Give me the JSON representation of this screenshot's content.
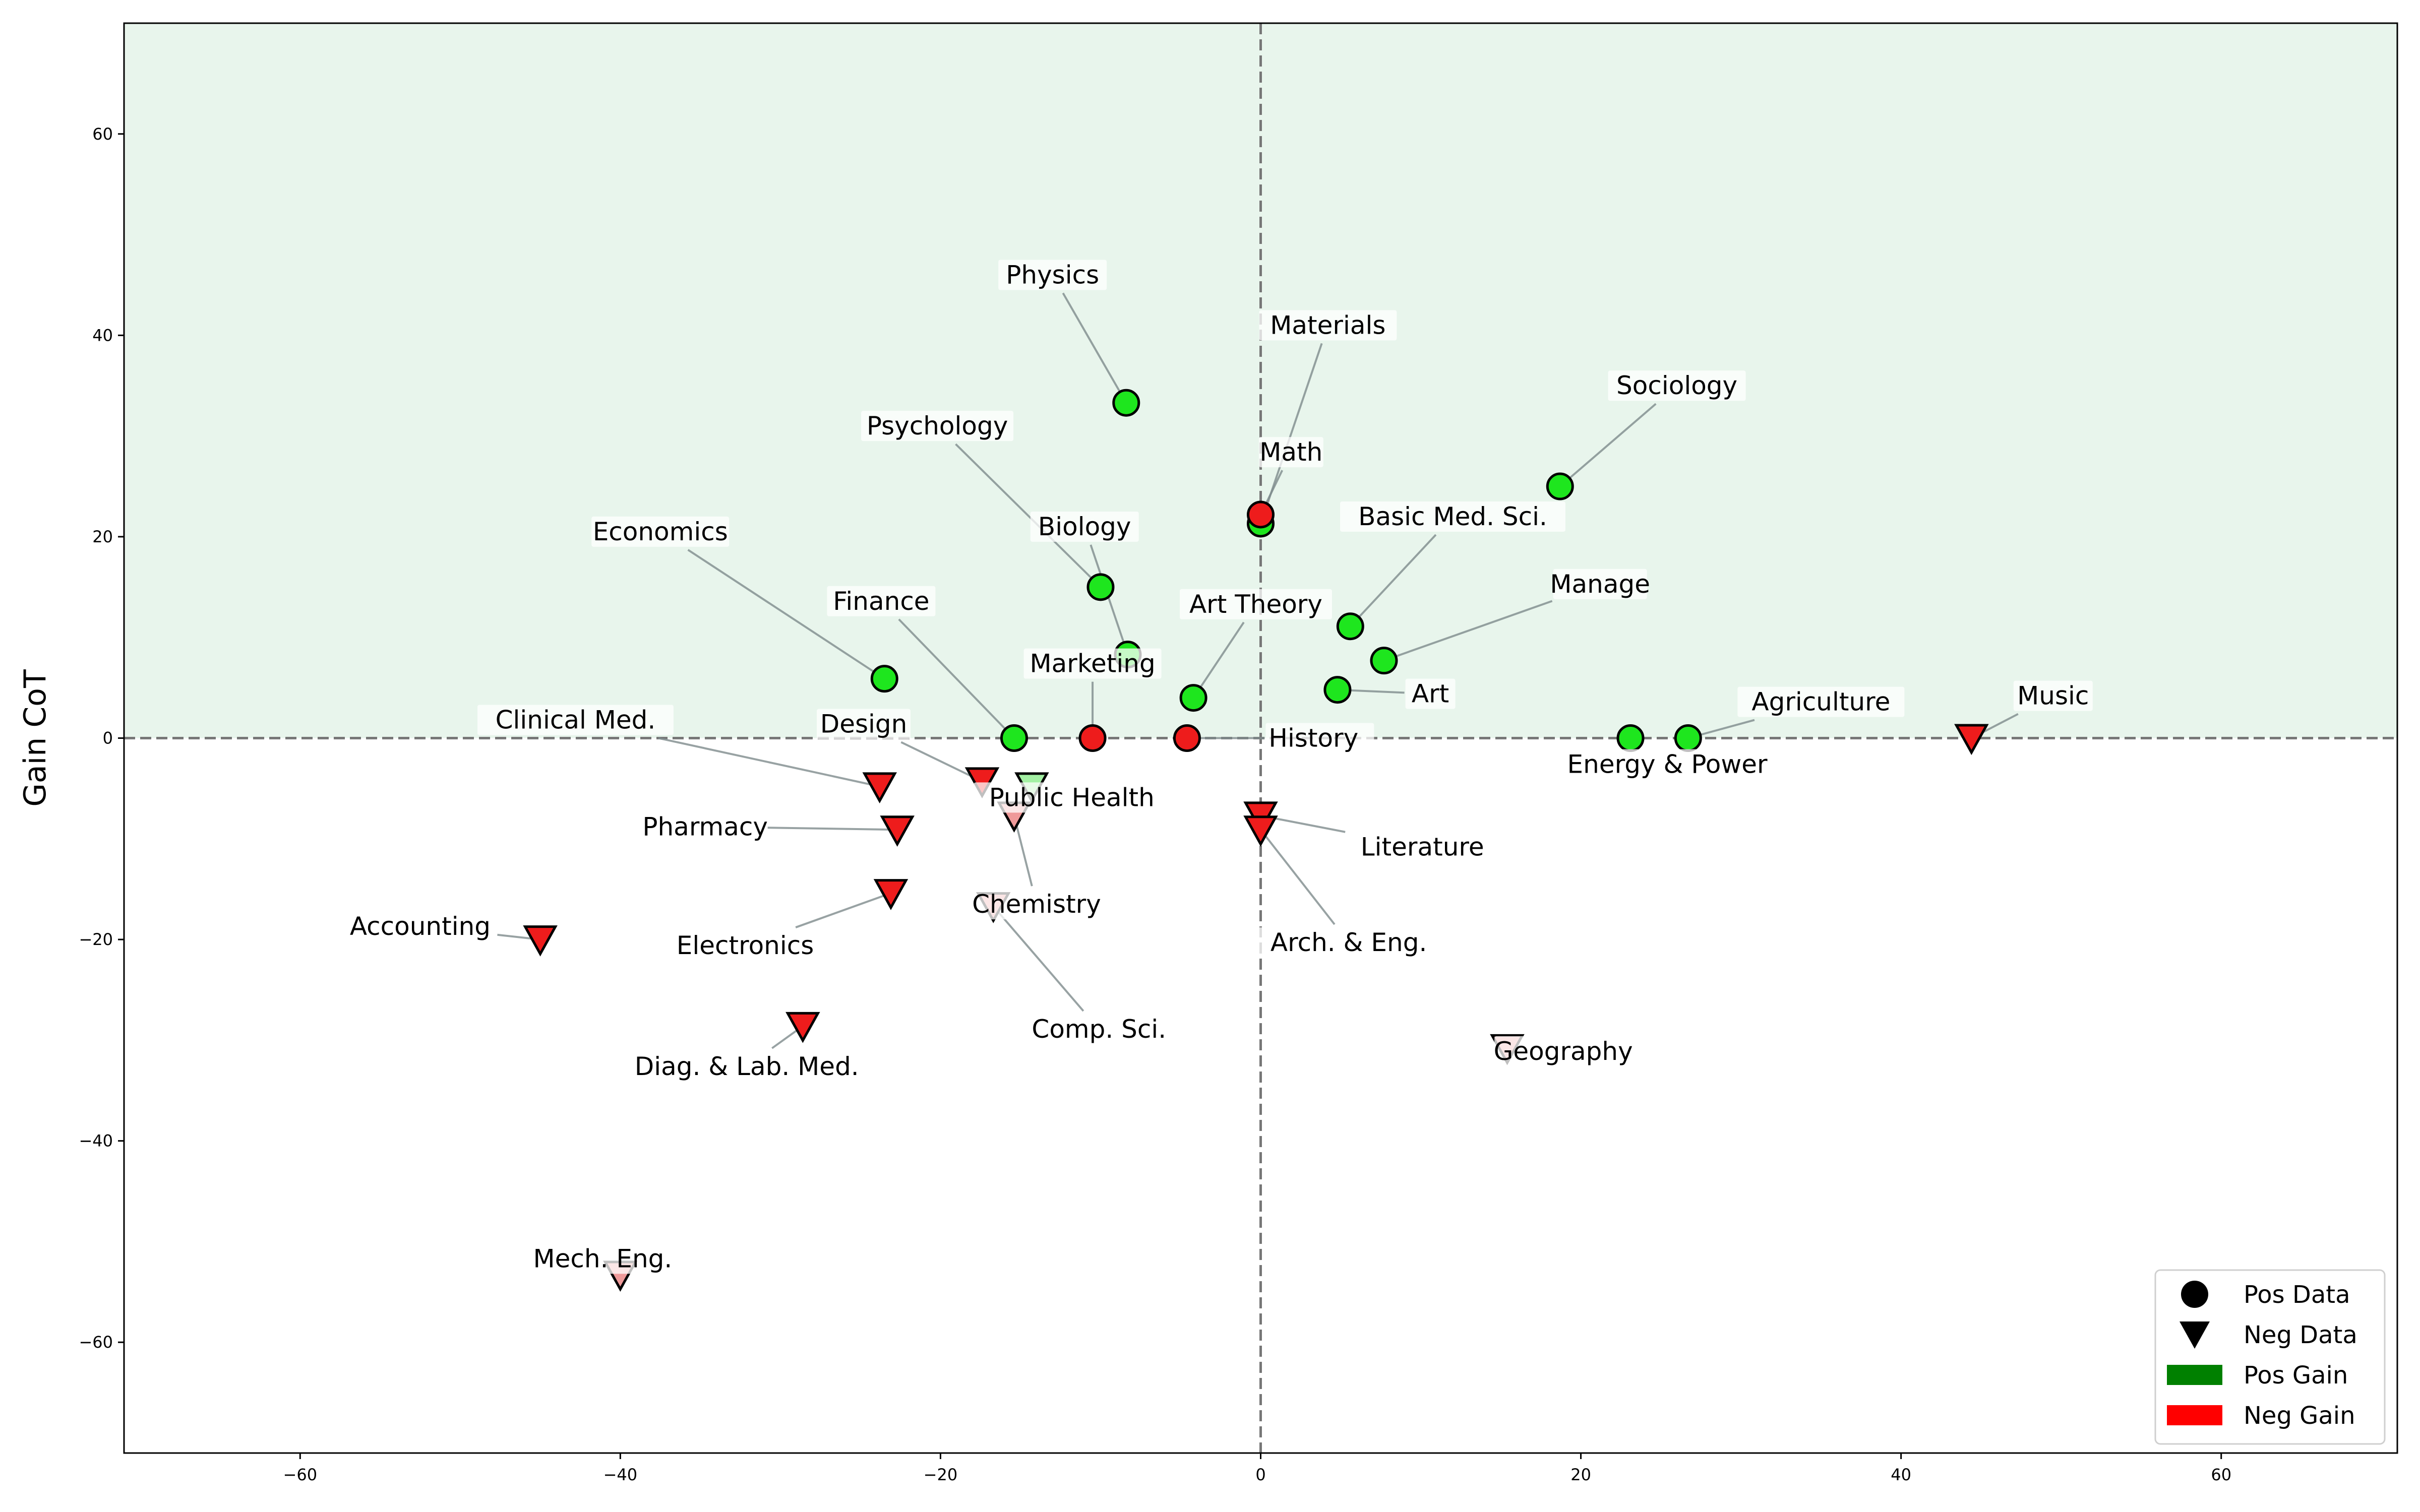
{
  "chart_data": {
    "type": "scatter",
    "title": "",
    "xlabel": "",
    "ylabel": "Gain CoT",
    "xlim": [
      -71,
      71
    ],
    "ylim": [
      -71,
      71
    ],
    "xticks": [
      -60,
      -40,
      -20,
      0,
      20,
      40,
      60
    ],
    "yticks": [
      -60,
      -40,
      -20,
      0,
      20,
      40,
      60
    ],
    "tick_labels": {
      "x": [
        "−60",
        "−40",
        "−20",
        "0",
        "20",
        "40",
        "60"
      ],
      "y": [
        "−60",
        "−40",
        "−20",
        "0",
        "20",
        "40",
        "60"
      ]
    },
    "positive_region_color": "#e8f5ec",
    "reference_lines": {
      "x": 0,
      "y": 0
    },
    "colors": {
      "pos": "#1ee61e",
      "neg": "#ee1c1c",
      "pos_faded": "#a3f0a3",
      "neg_faded": "#ef9a9a",
      "leader": "#7f8c8d",
      "legend_pos_patch": "#008000",
      "legend_neg_patch": "#ff0000"
    },
    "legend": {
      "position": "lower-right",
      "entries": [
        {
          "label": "Pos Data",
          "marker": "circle"
        },
        {
          "label": "Neg Data",
          "marker": "triangle-down"
        },
        {
          "label": "Pos Gain",
          "marker": "patch-green"
        },
        {
          "label": "Neg Gain",
          "marker": "patch-red"
        }
      ]
    },
    "points": [
      {
        "label": "Physics",
        "x": -8.4,
        "y": 33.3,
        "marker": "circle",
        "color": "pos",
        "lx": -13,
        "ly": 46
      },
      {
        "label": "Materials",
        "x": 0,
        "y": 21.3,
        "marker": "circle",
        "color": "pos",
        "lx": 4.2,
        "ly": 41
      },
      {
        "label": "Math",
        "x": 0,
        "y": 22.2,
        "marker": "circle",
        "color": "neg",
        "lx": 1.9,
        "ly": 28.4
      },
      {
        "label": "Sociology",
        "x": 18.7,
        "y": 25.0,
        "marker": "circle",
        "color": "pos",
        "lx": 26,
        "ly": 35
      },
      {
        "label": "Psychology",
        "x": -10.0,
        "y": 15.0,
        "marker": "circle",
        "color": "pos",
        "lx": -20.2,
        "ly": 31
      },
      {
        "label": "Biology",
        "x": -8.3,
        "y": 8.3,
        "marker": "circle",
        "color": "pos",
        "lx": -11,
        "ly": 21
      },
      {
        "label": "Basic Med. Sci.",
        "x": 5.6,
        "y": 11.1,
        "marker": "circle",
        "color": "pos",
        "lx": 12,
        "ly": 22
      },
      {
        "label": "Economics",
        "x": -23.5,
        "y": 5.9,
        "marker": "circle",
        "color": "pos",
        "lx": -37.5,
        "ly": 20.5
      },
      {
        "label": "Manage",
        "x": 7.7,
        "y": 7.7,
        "marker": "circle",
        "color": "pos",
        "lx": 21.2,
        "ly": 15.3
      },
      {
        "label": "Finance",
        "x": -15.4,
        "y": 0,
        "marker": "circle",
        "color": "pos",
        "lx": -23.7,
        "ly": 13.6
      },
      {
        "label": "Art Theory",
        "x": -4.2,
        "y": 4.0,
        "marker": "circle",
        "color": "pos",
        "lx": -0.3,
        "ly": 13.3
      },
      {
        "label": "Marketing",
        "x": -10.5,
        "y": 0,
        "marker": "circle",
        "color": "neg",
        "lx": -10.5,
        "ly": 7.4
      },
      {
        "label": "Art",
        "x": 4.8,
        "y": 4.8,
        "marker": "circle",
        "color": "pos",
        "lx": 10.6,
        "ly": 4.4
      },
      {
        "label": "History",
        "x": -4.6,
        "y": 0,
        "marker": "circle",
        "color": "neg",
        "lx": 0.5,
        "ly": 0,
        "anchor": "start"
      },
      {
        "label": "Agriculture",
        "x": 26.7,
        "y": 0,
        "marker": "circle",
        "color": "pos",
        "lx": 35,
        "ly": 3.6
      },
      {
        "label": "Energy & Power",
        "x": 23.1,
        "y": 0,
        "marker": "circle",
        "color": "pos",
        "lx": 25.4,
        "ly": -2.6
      },
      {
        "label": "Music",
        "x": 44.4,
        "y": 0,
        "marker": "triangle-down",
        "color": "neg",
        "lx": 49.5,
        "ly": 4.2
      },
      {
        "label": "Clinical Med.",
        "x": -23.8,
        "y": -4.8,
        "marker": "triangle-down",
        "color": "neg",
        "lx": -42.8,
        "ly": 1.8
      },
      {
        "label": "Design",
        "x": -17.4,
        "y": -4.3,
        "marker": "triangle-down",
        "color": "neg",
        "lx": -24.8,
        "ly": 1.4
      },
      {
        "label": "Public Health",
        "x": -14.3,
        "y": -4.8,
        "marker": "triangle-down",
        "color": "pos_faded",
        "lx": -11.8,
        "ly": -5.9
      },
      {
        "label": "Chemistry",
        "x": -15.4,
        "y": -7.7,
        "marker": "triangle-down",
        "color": "neg_faded",
        "lx": -14,
        "ly": -16.5
      },
      {
        "label": "Pharmacy",
        "x": -22.7,
        "y": -9.1,
        "marker": "triangle-down",
        "color": "neg",
        "lx": -34.7,
        "ly": -8.8
      },
      {
        "label": "Literature",
        "x": 0,
        "y": -7.7,
        "marker": "triangle-down",
        "color": "neg",
        "lx": 10.1,
        "ly": -10.8
      },
      {
        "label": "Arch. & Eng.",
        "x": 0,
        "y": -9.1,
        "marker": "triangle-down",
        "color": "neg",
        "lx": 5.5,
        "ly": -20.3
      },
      {
        "label": "Electronics",
        "x": -23.1,
        "y": -15.4,
        "marker": "triangle-down",
        "color": "neg",
        "lx": -32.2,
        "ly": -20.6
      },
      {
        "label": "Accounting",
        "x": -45.0,
        "y": -20.0,
        "marker": "triangle-down",
        "color": "neg",
        "lx": -52.5,
        "ly": -18.7
      },
      {
        "label": "Comp. Sci.",
        "x": -16.7,
        "y": -16.7,
        "marker": "triangle-down",
        "color": "neg_faded",
        "lx": -10.1,
        "ly": -28.9
      },
      {
        "label": "Diag. & Lab. Med.",
        "x": -28.6,
        "y": -28.6,
        "marker": "triangle-down",
        "color": "neg",
        "lx": -32.1,
        "ly": -32.6
      },
      {
        "label": "Geography",
        "x": 15.4,
        "y": -30.8,
        "marker": "triangle-down",
        "color": "neg_faded",
        "lx": 18.9,
        "ly": -31.1
      },
      {
        "label": "Mech. Eng.",
        "x": -40.0,
        "y": -53.3,
        "marker": "triangle-down",
        "color": "neg_faded",
        "lx": -41.1,
        "ly": -51.7
      }
    ]
  }
}
